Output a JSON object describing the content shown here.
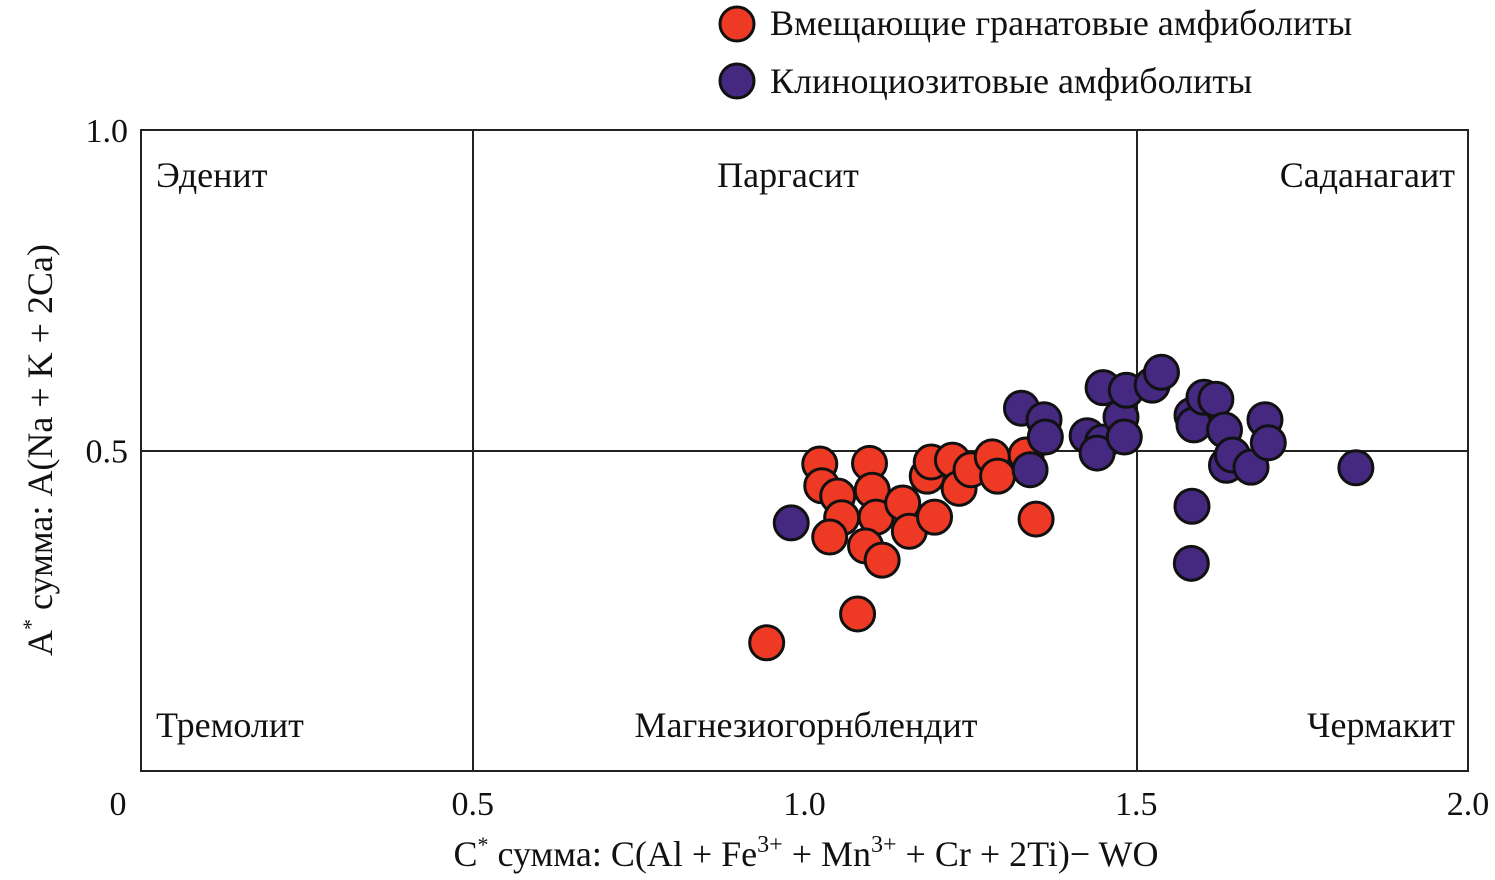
{
  "chart_data": {
    "type": "scatter",
    "title": "",
    "xlabel": "C* сумма: C(Al + Fe3+ + Mn3+ + Cr + 2Ti)− WO",
    "ylabel": "A* сумма: A(Na + K + 2Ca)",
    "xlim": [
      0,
      2.0
    ],
    "ylim": [
      0,
      1.0
    ],
    "x_ticks": [
      "0",
      "0.5",
      "1.0",
      "1.5",
      "2.0"
    ],
    "x_tick_values": [
      0,
      0.5,
      1.0,
      1.5,
      2.0
    ],
    "y_ticks": [
      "0.5",
      "1.0"
    ],
    "y_tick_values": [
      0.5,
      1.0
    ],
    "grid": false,
    "legend_position": "top-right",
    "field_labels": {
      "edenite": "Эденит",
      "pargasite": "Паргасит",
      "sadanagaite": "Саданагаит",
      "tremolite": "Тремолит",
      "magnesiohornblende": "Магнезиогорнблендит",
      "tschermakite": "Чермакит"
    },
    "series": [
      {
        "name": "Вмещающие гранатовые амфиболиты",
        "color": "#ee3a24",
        "points": [
          [
            1.023,
            0.479
          ],
          [
            1.026,
            0.445
          ],
          [
            1.05,
            0.429
          ],
          [
            1.056,
            0.395
          ],
          [
            1.038,
            0.365
          ],
          [
            1.098,
            0.48
          ],
          [
            1.102,
            0.438
          ],
          [
            1.108,
            0.396
          ],
          [
            1.092,
            0.351
          ],
          [
            1.117,
            0.329
          ],
          [
            1.148,
            0.418
          ],
          [
            1.158,
            0.374
          ],
          [
            1.196,
            0.396
          ],
          [
            1.185,
            0.46
          ],
          [
            1.191,
            0.482
          ],
          [
            1.223,
            0.485
          ],
          [
            1.233,
            0.441
          ],
          [
            1.251,
            0.47
          ],
          [
            1.334,
            0.493
          ],
          [
            1.283,
            0.49
          ],
          [
            1.291,
            0.46
          ],
          [
            1.349,
            0.393
          ],
          [
            1.08,
            0.245
          ],
          [
            0.943,
            0.2
          ]
        ]
      },
      {
        "name": "Клиноциозитовые амфиболиты",
        "color": "#45287f",
        "points": [
          [
            0.98,
            0.387
          ],
          [
            1.327,
            0.566
          ],
          [
            1.361,
            0.548
          ],
          [
            1.363,
            0.521
          ],
          [
            1.34,
            0.47
          ],
          [
            1.426,
            0.523
          ],
          [
            1.449,
            0.513
          ],
          [
            1.441,
            0.496
          ],
          [
            1.45,
            0.598
          ],
          [
            1.477,
            0.552
          ],
          [
            1.482,
            0.521
          ],
          [
            1.485,
            0.594
          ],
          [
            1.524,
            0.602
          ],
          [
            1.538,
            0.622
          ],
          [
            1.584,
            0.555
          ],
          [
            1.587,
            0.54
          ],
          [
            1.602,
            0.583
          ],
          [
            1.62,
            0.58
          ],
          [
            1.633,
            0.532
          ],
          [
            1.636,
            0.477
          ],
          [
            1.645,
            0.493
          ],
          [
            1.673,
            0.474
          ],
          [
            1.694,
            0.548
          ],
          [
            1.699,
            0.512
          ],
          [
            1.831,
            0.473
          ],
          [
            1.584,
            0.413
          ],
          [
            1.583,
            0.324
          ]
        ]
      }
    ]
  }
}
